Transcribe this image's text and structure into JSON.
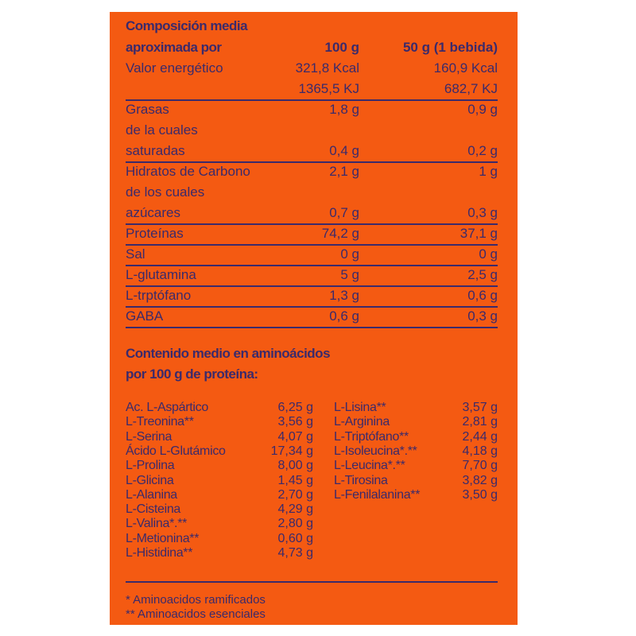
{
  "composition": {
    "title_line1": "Composición media",
    "title_line2": "aproximada por",
    "col1_header": "100 g",
    "col2_header": "50 g (1 bebida)",
    "rows": [
      {
        "label": "Valor energético",
        "v100": "321,8 Kcal",
        "v50": "160,9 Kcal"
      },
      {
        "label": "",
        "v100": "1365,5 KJ",
        "v50": "682,7 KJ"
      },
      {
        "label": "Grasas",
        "v100": "1,8 g",
        "v50": "0,9 g"
      },
      {
        "label": "de la cuales",
        "v100": "",
        "v50": ""
      },
      {
        "label": "saturadas",
        "v100": "0,4 g",
        "v50": "0,2 g"
      },
      {
        "label": "Hidratos de Carbono",
        "v100": "2,1 g",
        "v50": "1 g"
      },
      {
        "label": "de los cuales",
        "v100": "",
        "v50": ""
      },
      {
        "label": "azúcares",
        "v100": "0,7 g",
        "v50": "0,3 g"
      },
      {
        "label": "Proteínas",
        "v100": "74,2 g",
        "v50": "37,1 g"
      },
      {
        "label": "Sal",
        "v100": "0 g",
        "v50": "0 g"
      },
      {
        "label": "L-glutamina",
        "v100": "5 g",
        "v50": "2,5 g"
      },
      {
        "label": "L-trptófano",
        "v100": "1,3 g",
        "v50": "0,6 g"
      },
      {
        "label": "GABA",
        "v100": "0,6 g",
        "v50": "0,3 g"
      }
    ]
  },
  "amino": {
    "title_line1": "Contenido medio en aminoácidos",
    "title_line2": "por 100 g de proteína:",
    "left": [
      {
        "name": "Ac. L-Aspártico",
        "value": "6,25 g"
      },
      {
        "name": "L-Treonina**",
        "value": "3,56 g"
      },
      {
        "name": "L-Serina",
        "value": "4,07 g"
      },
      {
        "name": "Ácido L-Glutámico",
        "value": "17,34 g"
      },
      {
        "name": "L-Prolina",
        "value": "8,00 g"
      },
      {
        "name": "L-Glicina",
        "value": "1,45 g"
      },
      {
        "name": "L-Alanina",
        "value": "2,70 g"
      },
      {
        "name": "L-Cisteina",
        "value": "4,29 g"
      },
      {
        "name": "L-Valina*.**",
        "value": "2,80 g"
      },
      {
        "name": "L-Metionina**",
        "value": "0,60 g"
      },
      {
        "name": "L-Histidina**",
        "value": "4,73 g"
      }
    ],
    "right": [
      {
        "name": "L-Lisina**",
        "value": "3,57 g"
      },
      {
        "name": "L-Arginina",
        "value": "2,81 g"
      },
      {
        "name": "L-Triptófano**",
        "value": "2,44 g"
      },
      {
        "name": "L-Isoleucina*.**",
        "value": "4,18 g"
      },
      {
        "name": "L-Leucina*.**",
        "value": "7,70 g"
      },
      {
        "name": "L-Tirosina",
        "value": "3,82 g"
      },
      {
        "name": "L-Fenilalanina**",
        "value": "3,50 g"
      }
    ]
  },
  "footnotes": [
    "*  Aminoacidos ramificados",
    "** Aminoacidos esenciales"
  ],
  "colors": {
    "background": "#f45a12",
    "text": "#3b2a6b"
  }
}
